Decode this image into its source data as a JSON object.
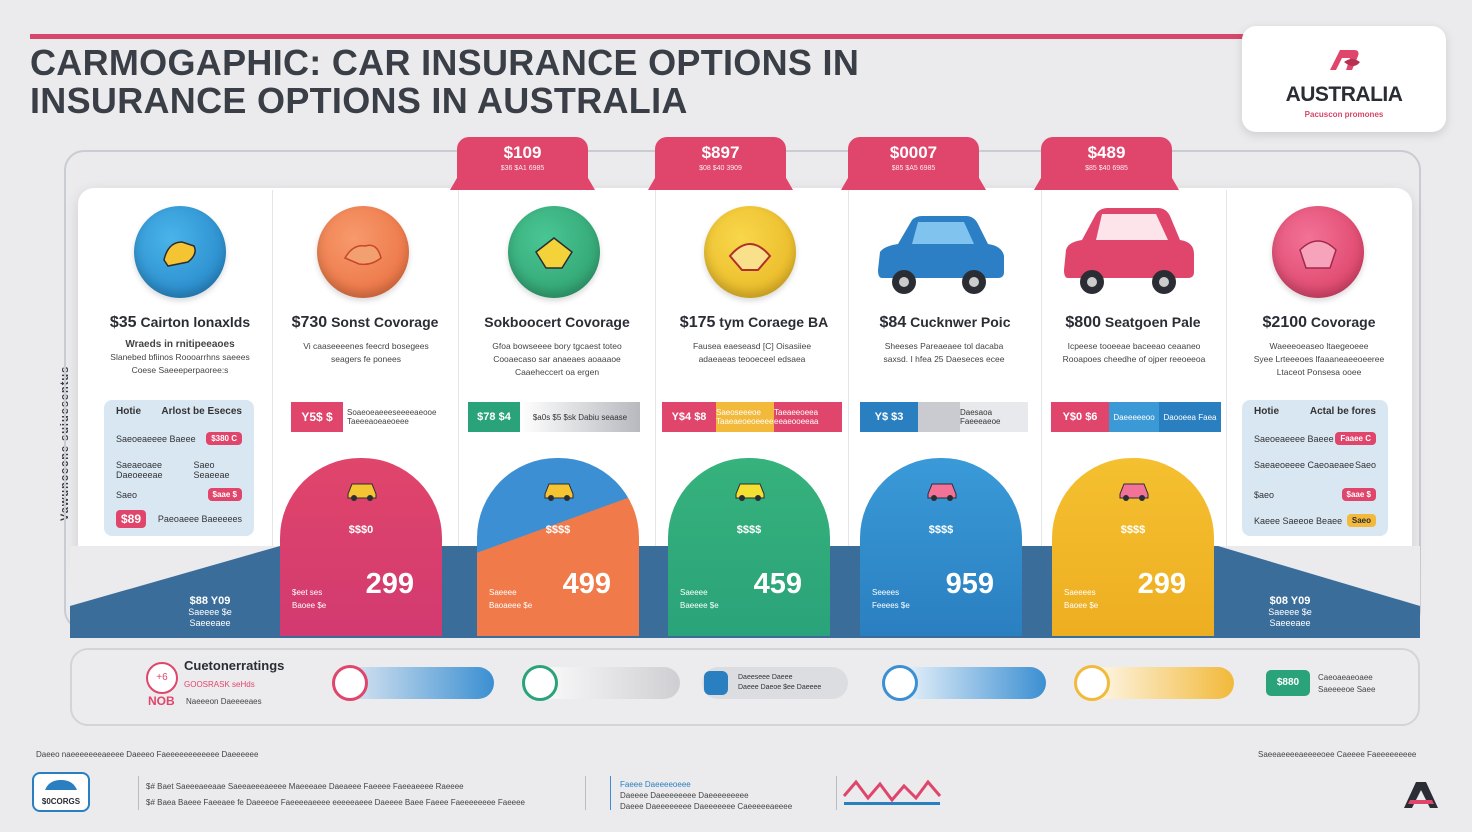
{
  "title": {
    "line1": "CARMOGAPHIC:  CAR INSURANCE OPTIONS IN",
    "line2": "INSURANCE OPTIONS IN AUSTRALIA"
  },
  "brand": {
    "name": "AUSTRALIA",
    "tagline": "Pacuscon promones"
  },
  "side_label": "Vawuncecne suiuesentus",
  "tabs": [
    {
      "price": "$109",
      "sub": "$36 $A1 6985"
    },
    {
      "price": "$897",
      "sub": "$08 $40 3909"
    },
    {
      "price": "$0007",
      "sub": "$85 $A5 6985"
    },
    {
      "price": "$489",
      "sub": "$85 $40 6985"
    }
  ],
  "columns": [
    {
      "price": "$35",
      "heading": "Cairton lonaxlds",
      "desc1": "Wraeds in rnitipeeaoes",
      "desc2": "Slanebed bfiinos Roooarrhns saeees",
      "desc3": "Coese Saeeeperpaoree:s",
      "color": "#2a8fd0"
    },
    {
      "price": "$730",
      "heading": "Sonst Covorage",
      "desc1": "Vi caaseeeenes feecrd bosegees",
      "desc2": "seagers fe ponees",
      "desc3": "",
      "color": "#f07a4a"
    },
    {
      "price": "",
      "heading": "Sokboocert Covorage",
      "desc1": "Gfoa bowseeee bory tgcaest toteo",
      "desc2": "Cooaecaso sar anaeaes aoaaaoe",
      "desc3": "Caaeheccert oa ergen",
      "color": "#35ad7a"
    },
    {
      "price": "$175",
      "heading": "tym Coraege BA",
      "desc1": "Fausea eaeseasd [C] Oisasiiee",
      "desc2": "adaeaeas teooeceel edsaea",
      "desc3": "",
      "color": "#f2c433"
    },
    {
      "price": "$84",
      "heading": "Cucknwer Poic",
      "desc1": "Sheeses Pareaeaee tol dacaba",
      "desc2": "saxsd. I hfea 25 Daeseces ecee",
      "desc3": "",
      "color": "#2a8fd0"
    },
    {
      "price": "$800",
      "heading": "Seatgoen Pale",
      "desc1": "Icpeese tooeeae baceeao ceaaneo",
      "desc2": "Rooapoes cheedhe of ojper reeoeeoa",
      "desc3": "",
      "color": "#e0456b"
    },
    {
      "price": "$2100",
      "heading": "Covorage",
      "desc1": "Waeeeoeaseo ltaegeoeee",
      "desc2": "Syee Lrteeeoes lfaaaneaeeoeeree",
      "desc3": "Ltaceot Ponsesa ooee",
      "color": "#e0456b"
    }
  ],
  "bars": [
    {
      "a": "Y5$ $",
      "b": "Soaeoeaeeeseeeeaeooe Taeeeaoeaeoeee"
    },
    {
      "a": "$78 $4",
      "b": "$a0s $5 $sk Dabiu seaase"
    },
    {
      "a": "Y$4 $8",
      "b": "Saeoseeeoe Taaeaeoeoeeee",
      "c": "Taeaeeoeea eeaeooeeaa"
    },
    {
      "a": "Y$ $3",
      "b": "",
      "c": "Daesaoa Faeeeaeoe"
    },
    {
      "a": "Y$0 $6",
      "b": "Daeeeeeoo",
      "c": "Daooeea Faea"
    }
  ],
  "sidebox_left": {
    "head1": "Hotie",
    "head2": "Arlost be Eseces",
    "r1": "Saeoeaeeee Baeee",
    "p1": "$380 C",
    "r2": "Saeaeoaee Daeoeeeae",
    "p2": "Saeo Seaeeae",
    "r3": "Saeo",
    "p3": "$aae $",
    "badge": "$89",
    "r4": "Paeoaeee Baeeeees"
  },
  "sidebox_right": {
    "head1": "Hotie",
    "head2": "Actal be fores",
    "r1": "Saeoeaeeee Baeee",
    "p1": "Faaee C",
    "r2": "Saeaeoeeee Caeoaeaee",
    "p2": "Saeo",
    "r3": "$aeo",
    "p3": "$aae $",
    "r4": "Kaeee Saeeoe Beaee",
    "p4": "Saeo"
  },
  "waves": [
    {
      "label": "$$$0",
      "big": "299",
      "s1": "$eet ses",
      "s2": "Baoee $e"
    },
    {
      "label": "$$$$",
      "big": "499",
      "s1": "Saeeee",
      "s2": "Baoaeee $e"
    },
    {
      "label": "$$$$",
      "big": "459",
      "s1": "Saeeee",
      "s2": "Baeeee $e"
    },
    {
      "label": "$$$$",
      "big": "959",
      "s1": "Seeees",
      "s2": "Feeees $e"
    },
    {
      "label": "$$$$",
      "big": "299",
      "s1": "Saeeees",
      "s2": "Baoee $e"
    }
  ],
  "band_left": {
    "l1": "$88 Y09",
    "l2": "Saeeee $e",
    "l3": "Saeeeaee"
  },
  "band_right": {
    "l1": "$08 Y09",
    "l2": "Saeeee $e",
    "l3": "Saeeeaee"
  },
  "ratings": {
    "num": "+6",
    "title": "Cuetonerratings",
    "sub": "GOOSRASK seHds",
    "badge": "NOB",
    "note": "Naeeeon Daeeeeaes",
    "right1": "Caeoaeaeoaee",
    "right2": "Saeeeeoe Saee",
    "right_tag": "$880"
  },
  "rating_bars": [
    {
      "color": "#3b8fd2",
      "fill": 0.55
    },
    {
      "color": "#cfcfd3",
      "fill": 0.7
    },
    {
      "color": "#cfcfd3",
      "fill": 0.55,
      "t1": "Daeeseee Daeee",
      "t2": "Daeee Daeoe $ee Daeeee"
    },
    {
      "color": "#3b8fd2",
      "fill": 0.55
    },
    {
      "color": "#f2b93a",
      "fill": 0.55
    }
  ],
  "footer": {
    "top_left": "Daeeo naeeeeeeeaeeee Daeeeo Faeeeeeeeeeeee Daeeeeee",
    "top_right": "Saeeaeeeeaeeeeoee Caeeee Faeeeeeeeee",
    "logo_text": "$0CORGS",
    "line1": "$#  Baet Saeeeaeeaae Saeeaeeeaeeee Maeeeaee Daeaeee Faeeee Faeeaeeee Raeeee",
    "line2": "$# Baea Baeee Faeeaee fe Daeeeoe Faeeeeaeeee eeeeeaeee Daeeee Baee Faeee Faeeeeeeee Faeeee",
    "mid1": "Faeee Daeeeeoeee",
    "mid2": "Daeeee Daeeeeeeee Daeeeeeeeee",
    "mid3": "Daeee Daeeeeeeee Daeeeeeee Caeeeeeaeeee"
  }
}
